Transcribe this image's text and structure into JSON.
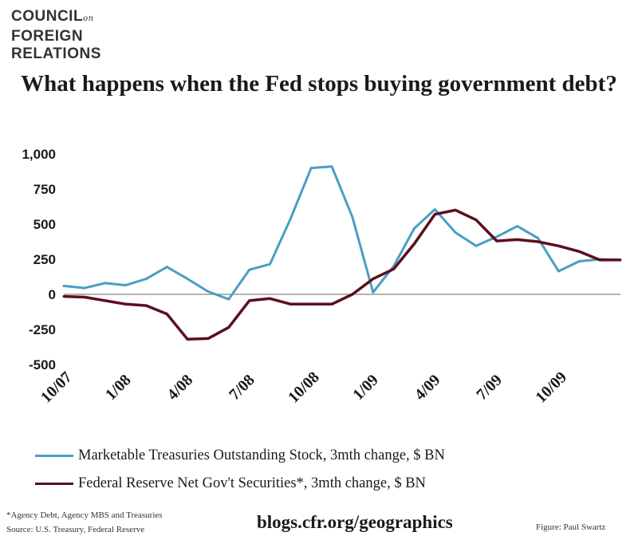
{
  "logo": {
    "line1": "COUNCIL",
    "on": "on",
    "line2": "FOREIGN",
    "line3": "RELATIONS"
  },
  "chart_data": {
    "type": "line",
    "title": "What happens when the Fed stops buying government debt?",
    "xlabel": "",
    "ylabel": "",
    "ylim": [
      -500,
      1000
    ],
    "yticks": [
      -500,
      -250,
      0,
      250,
      500,
      750,
      1000
    ],
    "ytick_labels": [
      "-500",
      "-250",
      "0",
      "250",
      "500",
      "750",
      "1,000"
    ],
    "x": [
      "10/07",
      "11/07",
      "12/07",
      "1/08",
      "2/08",
      "3/08",
      "4/08",
      "5/08",
      "6/08",
      "7/08",
      "8/08",
      "9/08",
      "10/08",
      "11/08",
      "12/08",
      "1/09",
      "2/09",
      "3/09",
      "4/09",
      "5/09",
      "6/09",
      "7/09",
      "8/09",
      "9/09",
      "10/09",
      "11/09",
      "12/09",
      "1/10"
    ],
    "xtick_labels": [
      "10/07",
      "1/08",
      "4/08",
      "7/08",
      "10/08",
      "1/09",
      "4/09",
      "7/09",
      "10/09"
    ],
    "xtick_index": [
      0,
      3,
      6,
      9,
      12,
      15,
      18,
      21,
      24
    ],
    "series": [
      {
        "name": "Marketable Treasuries Outstanding Stock, 3mth change, $ BN",
        "color": "#4a9ec4",
        "values": [
          60,
          45,
          80,
          65,
          110,
          195,
          110,
          20,
          -35,
          175,
          215,
          540,
          900,
          910,
          550,
          15,
          200,
          470,
          605,
          440,
          345,
          410,
          485,
          400,
          165,
          235,
          250,
          245
        ]
      },
      {
        "name": "Federal Reserve Net Gov't Securities*, 3mth change, $ BN",
        "color": "#5c0f1c",
        "values": [
          -15,
          -20,
          -45,
          -70,
          -80,
          -140,
          -320,
          -315,
          -235,
          -45,
          -30,
          -70,
          -70,
          -70,
          0,
          110,
          180,
          360,
          570,
          600,
          530,
          380,
          390,
          375,
          345,
          305,
          245,
          245
        ]
      }
    ],
    "grid": false,
    "legend": "bottom"
  },
  "footnote1": "*Agency Debt, Agency MBS and Treasuries",
  "footnote2": "Source: U.S. Treasury, Federal Reserve",
  "site": "blogs.cfr.org/geographics",
  "credit": "Figure: Paul Swartz"
}
